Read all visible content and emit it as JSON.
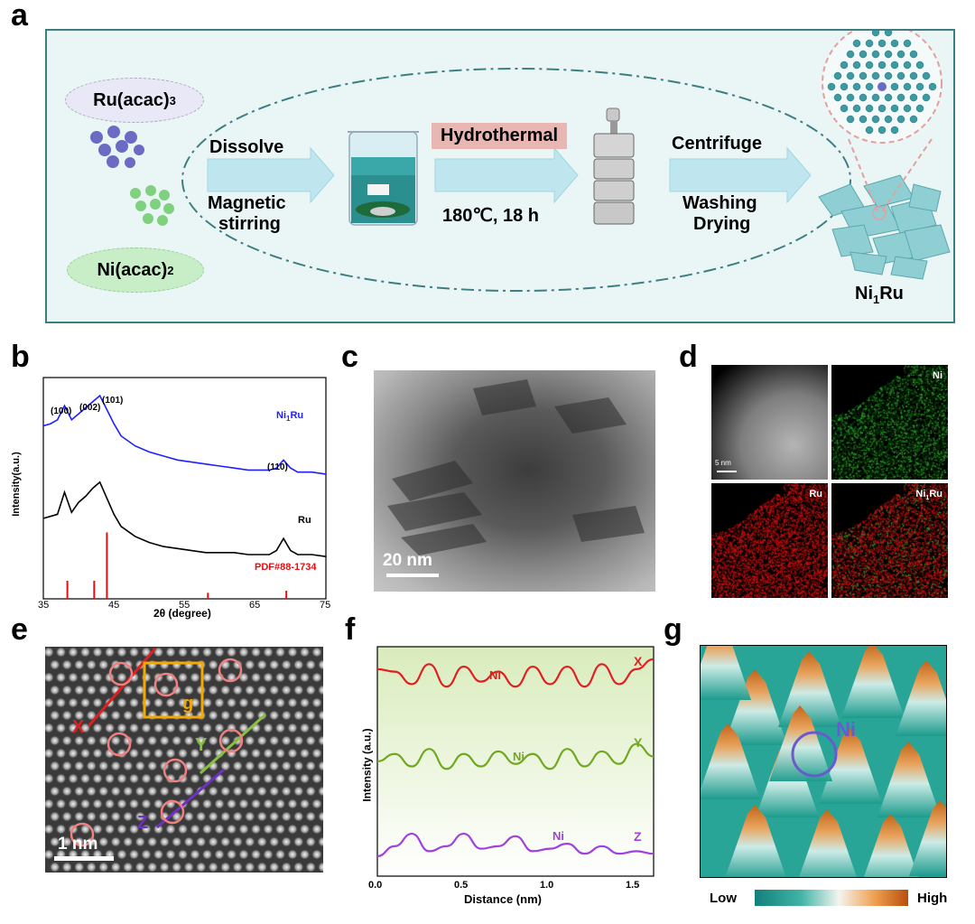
{
  "panels": {
    "a": "a",
    "b": "b",
    "c": "c",
    "d": "d",
    "e": "e",
    "f": "f",
    "g": "g"
  },
  "panel_a": {
    "precursor1": "Ru(acac)",
    "precursor1_sub": "3",
    "precursor2": "Ni(acac)",
    "precursor2_sub": "2",
    "step1_top": "Dissolve",
    "step1_bottom1": "Magnetic",
    "step1_bottom2": "stirring",
    "step2_top": "Hydrothermal",
    "step2_bottom": "180℃,  18 h",
    "step3_top": "Centrifuge",
    "step3_bottom1": "Washing",
    "step3_bottom2": "Drying",
    "product": "Ni",
    "product_sub": "1",
    "product_tail": "Ru",
    "colors": {
      "ru_ball": "#6b6bc4",
      "ni_ball": "#7fd07f",
      "frame": "#3d7e82"
    }
  },
  "panel_b": {
    "ylabel": "Intensity(a.u.)",
    "xlabel": "2θ (degree)",
    "xticks": [
      "35",
      "45",
      "55",
      "65",
      "75"
    ],
    "peaks": [
      "(100)",
      "(002)",
      "(101)",
      "(110)"
    ],
    "series": [
      {
        "name": "Ni1Ru",
        "label": "Ni",
        "sub": "1",
        "tail": "Ru",
        "color": "#1f1fff"
      },
      {
        "name": "Ru",
        "label": "Ru",
        "color": "#000000"
      }
    ],
    "reference": {
      "label": "PDF#88-1734",
      "color": "#e01010"
    }
  },
  "chart_data": [
    {
      "type": "line",
      "panel": "b",
      "xlabel": "2θ (degree)",
      "ylabel": "Intensity(a.u.)",
      "xlim": [
        35,
        75
      ],
      "series": [
        {
          "name": "Ni1Ru",
          "x": [
            35,
            36,
            37,
            38,
            39,
            40,
            41,
            42,
            43,
            44,
            45,
            46,
            48,
            50,
            52,
            54,
            56,
            58,
            60,
            62,
            64,
            66,
            67,
            68,
            69,
            70,
            71,
            72,
            73,
            75
          ],
          "y": [
            8.6,
            8.7,
            8.9,
            9.6,
            8.9,
            9.2,
            9.5,
            9.8,
            10.1,
            9.4,
            8.7,
            8.1,
            7.6,
            7.3,
            7.1,
            6.9,
            6.8,
            6.7,
            6.6,
            6.5,
            6.4,
            6.4,
            6.4,
            6.5,
            6.9,
            6.5,
            6.3,
            6.3,
            6.3,
            6.2
          ]
        },
        {
          "name": "Ru",
          "x": [
            35,
            36,
            37,
            38,
            39,
            40,
            41,
            42,
            43,
            44,
            45,
            46,
            48,
            50,
            52,
            54,
            56,
            58,
            60,
            62,
            64,
            66,
            67,
            68,
            69,
            70,
            71,
            72,
            73,
            75
          ],
          "y": [
            4.0,
            4.1,
            4.2,
            5.3,
            4.3,
            4.8,
            5.1,
            5.5,
            5.8,
            5.0,
            4.2,
            3.6,
            3.1,
            2.8,
            2.6,
            2.5,
            2.4,
            2.3,
            2.3,
            2.3,
            2.2,
            2.2,
            2.2,
            2.4,
            3.0,
            2.4,
            2.2,
            2.2,
            2.2,
            2.1
          ]
        }
      ],
      "reference_sticks": {
        "name": "PDF#88-1734",
        "x": [
          38.4,
          42.2,
          44.0,
          58.3,
          69.4
        ],
        "y": [
          0.9,
          0.9,
          3.3,
          0.3,
          0.4
        ]
      }
    },
    {
      "type": "line",
      "panel": "f",
      "xlabel": "Distance (nm)",
      "ylabel": "Intensity (a.u.)",
      "xlim": [
        0,
        1.6
      ],
      "xticks": [
        "0.0",
        "0.5",
        "1.0",
        "1.5"
      ],
      "series": [
        {
          "name": "X",
          "color": "#e02020",
          "x": [
            0,
            0.1,
            0.2,
            0.3,
            0.4,
            0.5,
            0.6,
            0.7,
            0.8,
            0.9,
            1.0,
            1.1,
            1.2,
            1.3,
            1.4,
            1.5,
            1.6
          ],
          "y": [
            8.3,
            8.2,
            7.7,
            8.5,
            7.6,
            8.4,
            7.8,
            8.2,
            7.6,
            8.4,
            7.7,
            8.4,
            7.6,
            8.5,
            7.7,
            8.3,
            8.7
          ]
        },
        {
          "name": "Y",
          "color": "#70a820",
          "x": [
            0,
            0.1,
            0.2,
            0.3,
            0.4,
            0.5,
            0.6,
            0.7,
            0.8,
            0.9,
            1.0,
            1.1,
            1.2,
            1.3,
            1.4,
            1.5,
            1.6
          ],
          "y": [
            4.6,
            4.9,
            4.4,
            5.1,
            4.3,
            4.9,
            4.4,
            5.0,
            4.5,
            4.9,
            4.3,
            5.1,
            4.4,
            5.0,
            4.5,
            5.3,
            4.8
          ]
        },
        {
          "name": "Z",
          "color": "#a040e0",
          "x": [
            0,
            0.1,
            0.2,
            0.3,
            0.4,
            0.5,
            0.6,
            0.7,
            0.8,
            0.9,
            1.0,
            1.1,
            1.2,
            1.3,
            1.4,
            1.5,
            1.6
          ],
          "y": [
            0.8,
            1.2,
            1.7,
            1.0,
            1.2,
            1.7,
            1.1,
            1.2,
            1.6,
            1.0,
            1.1,
            1.3,
            0.9,
            1.2,
            0.9,
            1.0,
            0.9
          ]
        }
      ]
    }
  ],
  "panel_c": {
    "scale": "20 nm"
  },
  "panel_d": {
    "tiles": {
      "ni": "Ni",
      "ru": "Ru",
      "merge": "Ni",
      "merge_sub": "1",
      "merge_tail": "Ru"
    },
    "scale": "5 nm"
  },
  "panel_e": {
    "scale": "1 nm",
    "lines": {
      "x": "X",
      "y": "Y",
      "z": "Z"
    },
    "box": "g"
  },
  "panel_f": {
    "ylabel": "Intensity (a.u.)",
    "xlabel": "Distance (nm)",
    "xticks": [
      "0.0",
      "0.5",
      "1.0",
      "1.5"
    ],
    "series_labels": {
      "x": "X",
      "y": "Y",
      "z": "Z"
    },
    "ni_label": "Ni"
  },
  "panel_g": {
    "ni": "Ni",
    "low": "Low",
    "high": "High"
  }
}
